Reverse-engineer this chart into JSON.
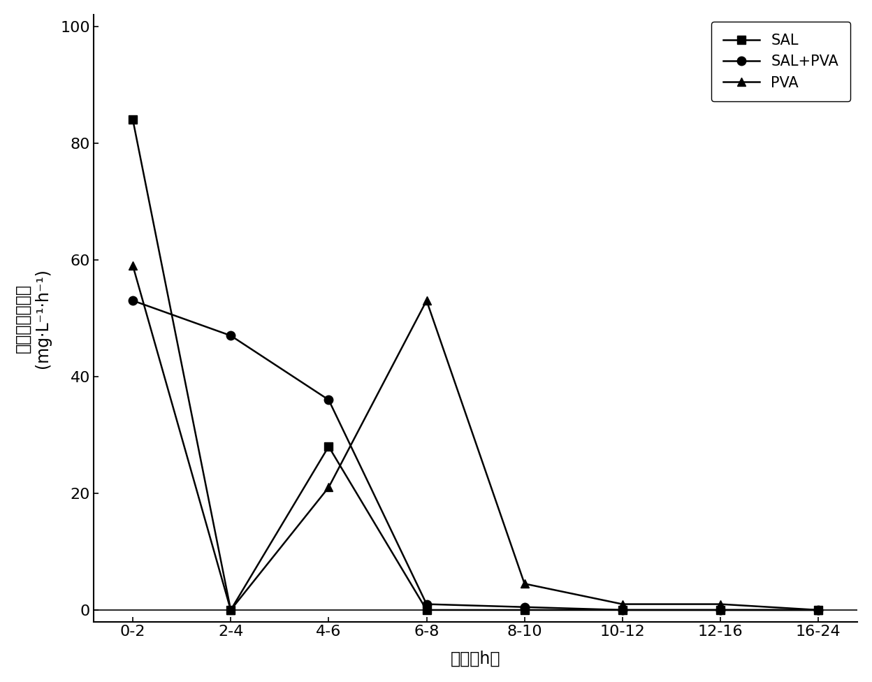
{
  "x_labels": [
    "0-2",
    "2-4",
    "4-6",
    "6-8",
    "8-10",
    "10-12",
    "12-16",
    "16-24"
  ],
  "x_positions": [
    0,
    1,
    2,
    3,
    4,
    5,
    6,
    7
  ],
  "series_order": [
    "SAL",
    "SAL+PVA",
    "PVA"
  ],
  "series": {
    "SAL": {
      "y": [
        84,
        0,
        28,
        0,
        0,
        0,
        0,
        0
      ],
      "marker": "s",
      "color": "#000000",
      "linewidth": 1.8,
      "markersize": 9,
      "label": "SAL"
    },
    "SAL+PVA": {
      "y": [
        53,
        47,
        36,
        1,
        0.5,
        0,
        0,
        0
      ],
      "marker": "o",
      "color": "#000000",
      "linewidth": 1.8,
      "markersize": 9,
      "label": "SAL+PVA"
    },
    "PVA": {
      "y": [
        59,
        0,
        21,
        53,
        4.5,
        1,
        1,
        0
      ],
      "marker": "^",
      "color": "#000000",
      "linewidth": 1.8,
      "markersize": 9,
      "label": "PVA"
    }
  },
  "ylabel_chinese": "确态氮去除速率",
  "ylabel_unit": "(mg·L⁻¹·h⁻¹)",
  "xlabel": "时间（h）",
  "ylim": [
    -2,
    102
  ],
  "yticks": [
    0,
    20,
    40,
    60,
    80,
    100
  ],
  "legend_loc": "upper right",
  "background_color": "#ffffff",
  "spine_color": "#000000",
  "grid": false,
  "ylabel_fontsize": 17,
  "xlabel_fontsize": 17,
  "tick_fontsize": 16,
  "legend_fontsize": 15
}
